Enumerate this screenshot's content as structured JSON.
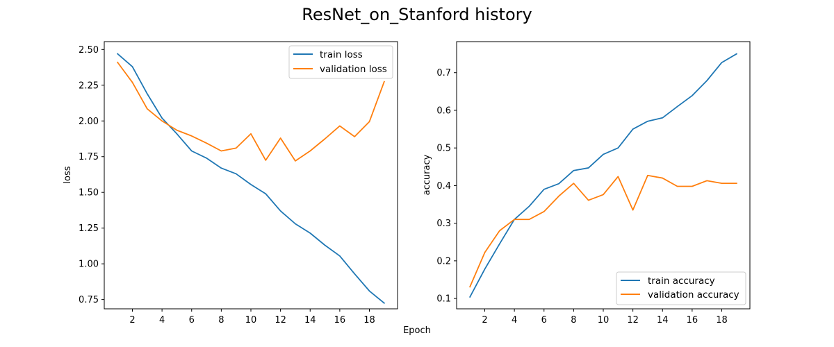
{
  "figure": {
    "title": "ResNet_on_Stanford history",
    "shared_xlabel": "Epoch"
  },
  "chart_data": [
    {
      "type": "line",
      "title": "",
      "xlabel": "",
      "ylabel": "loss",
      "xlim": [
        0.1,
        19.9
      ],
      "ylim": [
        0.685,
        2.555
      ],
      "xticks": [
        2,
        4,
        6,
        8,
        10,
        12,
        14,
        16,
        18
      ],
      "yticks": [
        0.75,
        1.0,
        1.25,
        1.5,
        1.75,
        2.0,
        2.25,
        2.5
      ],
      "ytick_labels": [
        "0.75",
        "1.00",
        "1.25",
        "1.50",
        "1.75",
        "2.00",
        "2.25",
        "2.50"
      ],
      "grid": false,
      "legend_position": "upper right",
      "x": [
        1,
        2,
        3,
        4,
        5,
        6,
        7,
        8,
        9,
        10,
        11,
        12,
        13,
        14,
        15,
        16,
        17,
        18,
        19
      ],
      "series": [
        {
          "name": "train loss",
          "color": "#1f77b4",
          "values": [
            2.47,
            2.38,
            2.19,
            2.02,
            1.91,
            1.79,
            1.74,
            1.67,
            1.63,
            1.555,
            1.49,
            1.37,
            1.28,
            1.215,
            1.13,
            1.055,
            0.93,
            0.81,
            0.725
          ]
        },
        {
          "name": "validation loss",
          "color": "#ff7f0e",
          "values": [
            2.41,
            2.27,
            2.085,
            2.0,
            1.935,
            1.895,
            1.845,
            1.79,
            1.81,
            1.91,
            1.725,
            1.88,
            1.72,
            1.79,
            1.875,
            1.965,
            1.89,
            1.995,
            2.275
          ]
        }
      ]
    },
    {
      "type": "line",
      "title": "",
      "xlabel": "",
      "ylabel": "accuracy",
      "xlim": [
        0.1,
        19.9
      ],
      "ylim": [
        0.0725,
        0.7825
      ],
      "xticks": [
        2,
        4,
        6,
        8,
        10,
        12,
        14,
        16,
        18
      ],
      "yticks": [
        0.1,
        0.2,
        0.3,
        0.4,
        0.5,
        0.6,
        0.7
      ],
      "ytick_labels": [
        "0.1",
        "0.2",
        "0.3",
        "0.4",
        "0.5",
        "0.6",
        "0.7"
      ],
      "grid": false,
      "legend_position": "lower right",
      "x": [
        1,
        2,
        3,
        4,
        5,
        6,
        7,
        8,
        9,
        10,
        11,
        12,
        13,
        14,
        15,
        16,
        17,
        18,
        19
      ],
      "series": [
        {
          "name": "train accuracy",
          "color": "#1f77b4",
          "values": [
            0.104,
            0.178,
            0.245,
            0.31,
            0.345,
            0.39,
            0.405,
            0.44,
            0.447,
            0.483,
            0.5,
            0.55,
            0.571,
            0.58,
            0.61,
            0.639,
            0.679,
            0.727,
            0.75
          ]
        },
        {
          "name": "validation accuracy",
          "color": "#ff7f0e",
          "values": [
            0.131,
            0.222,
            0.28,
            0.31,
            0.31,
            0.331,
            0.372,
            0.406,
            0.361,
            0.376,
            0.424,
            0.335,
            0.427,
            0.42,
            0.398,
            0.398,
            0.413,
            0.406,
            0.406
          ]
        }
      ]
    }
  ]
}
